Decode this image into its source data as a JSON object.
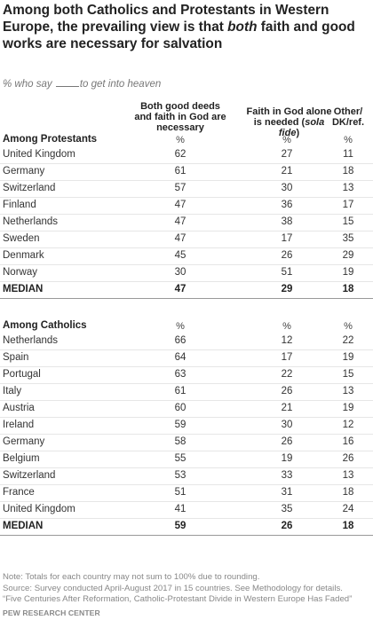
{
  "title": "Among both Catholics and Protestants in Western Europe, the prevailing view is that both faith and good works are necessary for salvation",
  "title_parts": {
    "pre": "Among both Catholics and Protestants in Western Europe, the prevailing view is that ",
    "emph": "both",
    "post": " faith and good works are necessary for salvation"
  },
  "subtitle": {
    "pre": "% who say",
    "post": "to get into heaven"
  },
  "columns": [
    {
      "label": "Both good deeds and faith in God are necessary"
    },
    {
      "label_pre": "Faith in God alone is needed (",
      "label_emph": "sola fide",
      "label_post": ")"
    },
    {
      "label": "Other/ DK/ref."
    }
  ],
  "pct_symbol": "%",
  "chart_data": {
    "type": "table",
    "columns": [
      "Both good deeds and faith in God are necessary",
      "Faith in God alone is needed (sola fide)",
      "Other/DK/ref."
    ],
    "sections": [
      {
        "label": "Among Protestants",
        "rows": [
          {
            "country": "United Kingdom",
            "values": [
              62,
              27,
              11
            ]
          },
          {
            "country": "Germany",
            "values": [
              61,
              21,
              18
            ]
          },
          {
            "country": "Switzerland",
            "values": [
              57,
              30,
              13
            ]
          },
          {
            "country": "Finland",
            "values": [
              47,
              36,
              17
            ]
          },
          {
            "country": "Netherlands",
            "values": [
              47,
              38,
              15
            ]
          },
          {
            "country": "Sweden",
            "values": [
              47,
              17,
              35
            ]
          },
          {
            "country": "Denmark",
            "values": [
              45,
              26,
              29
            ]
          },
          {
            "country": "Norway",
            "values": [
              30,
              51,
              19
            ]
          }
        ],
        "median": {
          "label": "MEDIAN",
          "values": [
            47,
            29,
            18
          ]
        }
      },
      {
        "label": "Among Catholics",
        "rows": [
          {
            "country": "Netherlands",
            "values": [
              66,
              12,
              22
            ]
          },
          {
            "country": "Spain",
            "values": [
              64,
              17,
              19
            ]
          },
          {
            "country": "Portugal",
            "values": [
              63,
              22,
              15
            ]
          },
          {
            "country": "Italy",
            "values": [
              61,
              26,
              13
            ]
          },
          {
            "country": "Austria",
            "values": [
              60,
              21,
              19
            ]
          },
          {
            "country": "Ireland",
            "values": [
              59,
              30,
              12
            ]
          },
          {
            "country": "Germany",
            "values": [
              58,
              26,
              16
            ]
          },
          {
            "country": "Belgium",
            "values": [
              55,
              19,
              26
            ]
          },
          {
            "country": "Switzerland",
            "values": [
              53,
              33,
              13
            ]
          },
          {
            "country": "France",
            "values": [
              51,
              31,
              18
            ]
          },
          {
            "country": "United Kingdom",
            "values": [
              41,
              35,
              24
            ]
          }
        ],
        "median": {
          "label": "MEDIAN",
          "values": [
            59,
            26,
            18
          ]
        }
      }
    ]
  },
  "notes": [
    "Note: Totals for each country may not sum to 100% due to rounding.",
    "Source: Survey conducted April-August 2017 in 15 countries. See Methodology for details.",
    "“Five Centuries After Reformation, Catholic-Protestant Divide in Western Europe Has Faded”"
  ],
  "source_label": "PEW RESEARCH CENTER"
}
